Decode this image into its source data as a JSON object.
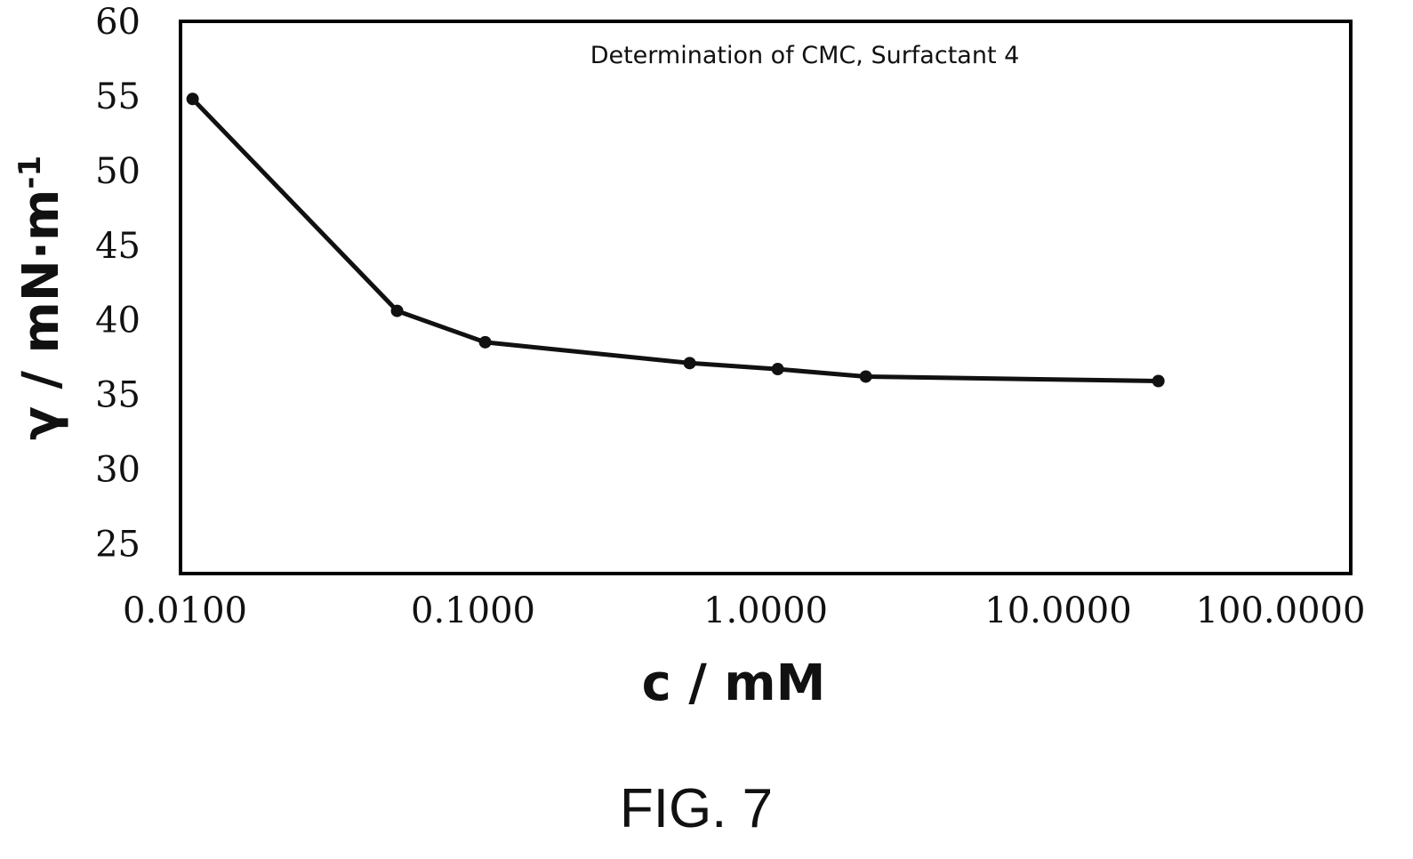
{
  "chart_data": {
    "type": "line",
    "title": "Determination of CMC, Surfactant 4",
    "xlabel": "c / mM",
    "ylabel": "γ / mN·m",
    "ylabel_superscript": "-1",
    "x_scale": "log",
    "xlim": [
      0.01,
      100
    ],
    "ylim": [
      23,
      60
    ],
    "x_ticks": [
      "0.0100",
      "0.1000",
      "1.0000",
      "10.0000",
      "100.0000"
    ],
    "y_ticks": [
      "25",
      "30",
      "35",
      "40",
      "45",
      "50",
      "55",
      "60"
    ],
    "grid": false,
    "legend": "none",
    "series": [
      {
        "x": [
          0.011,
          0.055,
          0.11,
          0.55,
          1.1,
          2.2,
          22
        ],
        "y": [
          54.8,
          40.6,
          38.5,
          37.1,
          36.7,
          36.2,
          35.9
        ]
      }
    ]
  },
  "caption": "FIG. 7",
  "colors": {
    "line": "#111111",
    "frame": "#000000"
  }
}
